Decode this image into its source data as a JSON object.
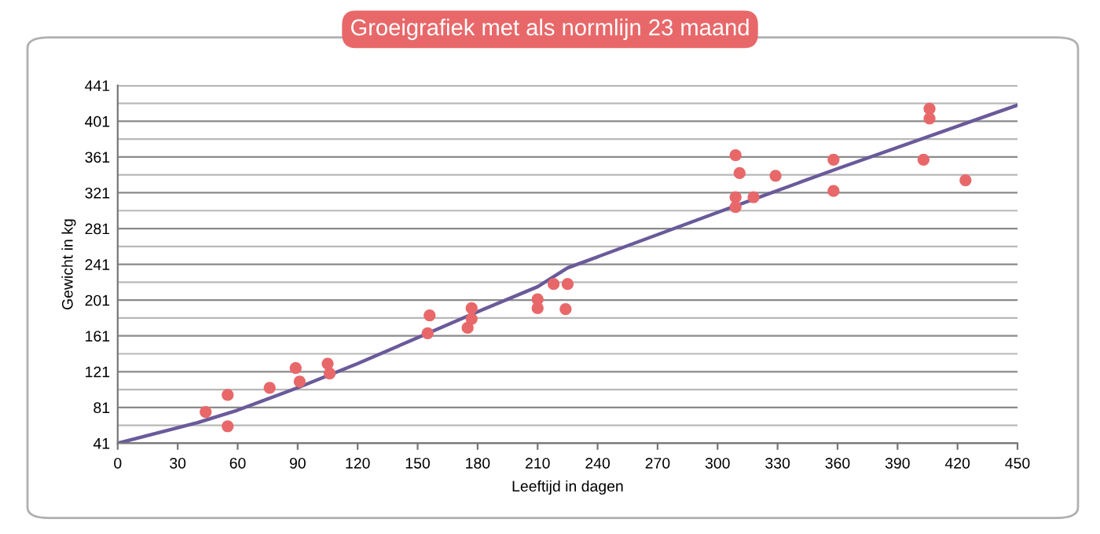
{
  "chart_data": {
    "type": "scatter",
    "title": "Groeigrafiek met als normlijn 23 maand",
    "xlabel": "Leeftijd in dagen",
    "ylabel": "Gewicht in kg",
    "xlim": [
      0,
      450
    ],
    "xticks": [
      0,
      30,
      60,
      90,
      120,
      150,
      180,
      210,
      240,
      270,
      300,
      330,
      360,
      390,
      420,
      450
    ],
    "ylim": [
      41,
      441
    ],
    "yticks": [
      41,
      {
        "value": 61,
        "label": null
      },
      81,
      {
        "value": 101,
        "label": null
      },
      121,
      {
        "value": 141,
        "label": null
      },
      161,
      {
        "value": 181,
        "label": null
      },
      201,
      {
        "value": 221,
        "label": null
      },
      241,
      {
        "value": 261,
        "label": null
      },
      281,
      {
        "value": 301,
        "label": null
      },
      321,
      {
        "value": 341,
        "label": null
      },
      361,
      {
        "value": 381,
        "label": null
      },
      401,
      {
        "value": 421,
        "label": null
      },
      441
    ],
    "grid": "y",
    "series": [
      {
        "marker": "circle",
        "color": "#e8686a",
        "x": [
          44,
          55,
          55,
          76,
          89,
          91,
          105,
          106,
          156,
          155,
          177,
          177,
          175,
          210,
          210,
          218,
          225,
          224,
          309,
          311,
          309,
          309,
          318,
          329,
          358,
          358,
          406,
          406,
          403,
          424
        ],
        "values": [
          76,
          95,
          60,
          103,
          125,
          110,
          130,
          119,
          184,
          164,
          192,
          180,
          170,
          202,
          192,
          219,
          219,
          191,
          363,
          343,
          316,
          305,
          316,
          340,
          358,
          323,
          415,
          404,
          358,
          335
        ]
      },
      {
        "type": "line",
        "color": "#6a5a9a",
        "x": [
          0,
          40,
          60,
          90,
          120,
          150,
          180,
          210,
          225,
          300,
          360,
          450
        ],
        "values": [
          41,
          64,
          78,
          103,
          130,
          159,
          188,
          216,
          237,
          299,
          348,
          419
        ]
      }
    ]
  }
}
